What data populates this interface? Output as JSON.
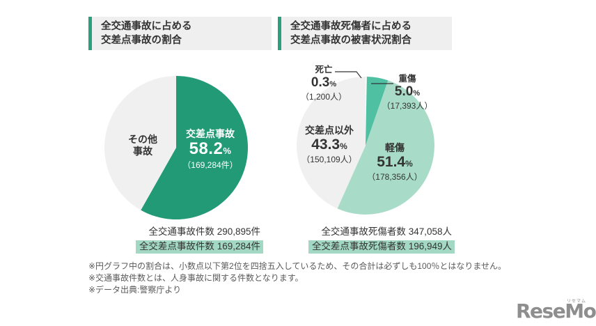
{
  "page": {
    "background": "#ffffff"
  },
  "percent_sign": "%",
  "colors": {
    "accent_green": "#2aa17c",
    "pie_left_green": "#229a76",
    "pie_right_teal": "#4fc0a1",
    "pie_right_mint": "#a8dcc8",
    "pie_gray": "#f0f0f0",
    "highlight_mint": "#a3d9c4",
    "header_bg": "#efefef"
  },
  "headers": {
    "left": {
      "line1": "全交通事故に占める",
      "line2": "交差点事故の割合"
    },
    "right": {
      "line1": "全交通事故死傷者に占める",
      "line2": "交差点事故の被害状況割合"
    }
  },
  "chart_data": [
    {
      "type": "pie",
      "title": "全交通事故に占める交差点事故の割合",
      "start_angle": "top",
      "direction": "clockwise",
      "slices": [
        {
          "label": "交差点事故",
          "value_pct": 58.2,
          "value_display": "58.2",
          "count": "（169,284件）",
          "color": "#229a76"
        },
        {
          "label": "その他事故",
          "label_lines": [
            "その他",
            "事故"
          ],
          "value_pct": 41.8,
          "value_display": "",
          "count": "",
          "color": "#f0f0f0"
        }
      ],
      "totals": [
        {
          "label": "全交通事故件数",
          "value": "290,895件",
          "text": "全交通事故件数 290,895件",
          "highlighted": false
        },
        {
          "label": "全交差点事故件数",
          "value": "169,284件",
          "text": "全交差点事故件数 169,284件",
          "highlighted": true
        }
      ]
    },
    {
      "type": "pie",
      "title": "全交通事故死傷者に占める交差点事故の被害状況割合",
      "start_angle": "top",
      "direction": "clockwise",
      "slices": [
        {
          "label": "死亡",
          "value_pct": 0.3,
          "value_display": "0.3",
          "count": "（1,200人）",
          "color": "#ffffff"
        },
        {
          "label": "重傷",
          "value_pct": 5.0,
          "value_display": "5.0",
          "count": "（17,393人）",
          "color": "#4fc0a1"
        },
        {
          "label": "軽傷",
          "value_pct": 51.4,
          "value_display": "51.4",
          "count": "（178,356人）",
          "color": "#a8dcc8"
        },
        {
          "label": "交差点以外",
          "value_pct": 43.3,
          "value_display": "43.3",
          "count": "（150,109人）",
          "color": "#f0f0f0"
        }
      ],
      "totals": [
        {
          "label": "全交通事故死傷者数",
          "value": "347,058人",
          "text": "全交通事故死傷者数 347,058人",
          "highlighted": false
        },
        {
          "label": "全交差点事故死傷者数",
          "value": "196,949人",
          "text": "全交差点事故死傷者数 196,949人",
          "highlighted": true
        }
      ]
    }
  ],
  "footnotes": [
    "※円グラフ中の割合は、小数点以下第2位を四捨五入しているため、その合計は必ずしも100％とはなりません。",
    "※交通事故件数とは、人身事故に関する件数となります。",
    "※データ出典:警察庁より"
  ],
  "logo": {
    "text": "ReseMom.",
    "ruby": "リセマム"
  }
}
